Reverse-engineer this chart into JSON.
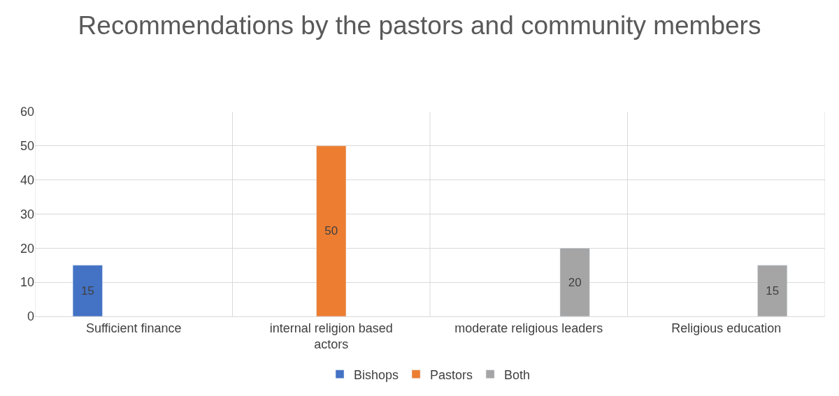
{
  "chart_data": {
    "type": "bar",
    "title": "Recommendations by the pastors and community members",
    "categories": [
      "Sufficient finance",
      "internal religion based actors",
      "moderate religious leaders",
      "Religious education"
    ],
    "series": [
      {
        "name": "Bishops",
        "color": "#4472c4",
        "values": [
          15,
          null,
          null,
          null
        ]
      },
      {
        "name": "Pastors",
        "color": "#ed7d31",
        "values": [
          null,
          50,
          null,
          null
        ]
      },
      {
        "name": "Both",
        "color": "#a5a5a5",
        "values": [
          null,
          null,
          20,
          15
        ]
      }
    ],
    "ylim": [
      0,
      60
    ],
    "yticks": [
      0,
      10,
      20,
      30,
      40,
      50,
      60
    ],
    "grid": true,
    "data_labels": true,
    "legend": "bottom"
  }
}
